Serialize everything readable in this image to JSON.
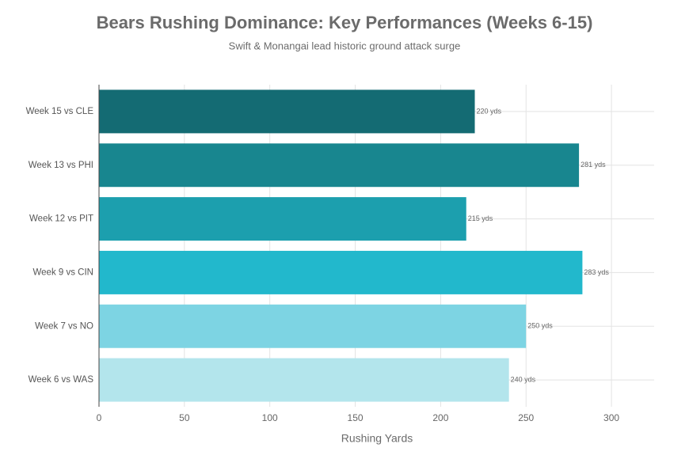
{
  "chart_data": {
    "type": "bar",
    "orientation": "horizontal",
    "title": "Bears Rushing Dominance: Key Performances (Weeks 6-15)",
    "subtitle": "Swift & Monangai lead historic ground attack surge",
    "x_label": "Rushing Yards",
    "categories": [
      "Week 15 vs CLE",
      "Week 13 vs PHI",
      "Week 12 vs PIT",
      "Week 9 vs CIN",
      "Week 7 vs NO",
      "Week 6 vs WAS"
    ],
    "values": [
      220,
      281,
      215,
      283,
      250,
      240
    ],
    "value_labels": [
      "220 yds",
      "281 yds",
      "215 yds",
      "283 yds",
      "250 yds",
      "240 yds"
    ],
    "colors": [
      "#146b73",
      "#18868f",
      "#1c9fae",
      "#22b8cc",
      "#7dd4e3",
      "#b3e5ec"
    ],
    "xlim": [
      0,
      325
    ],
    "xticks": [
      0,
      50,
      100,
      150,
      200,
      250,
      300
    ],
    "grid": true
  }
}
